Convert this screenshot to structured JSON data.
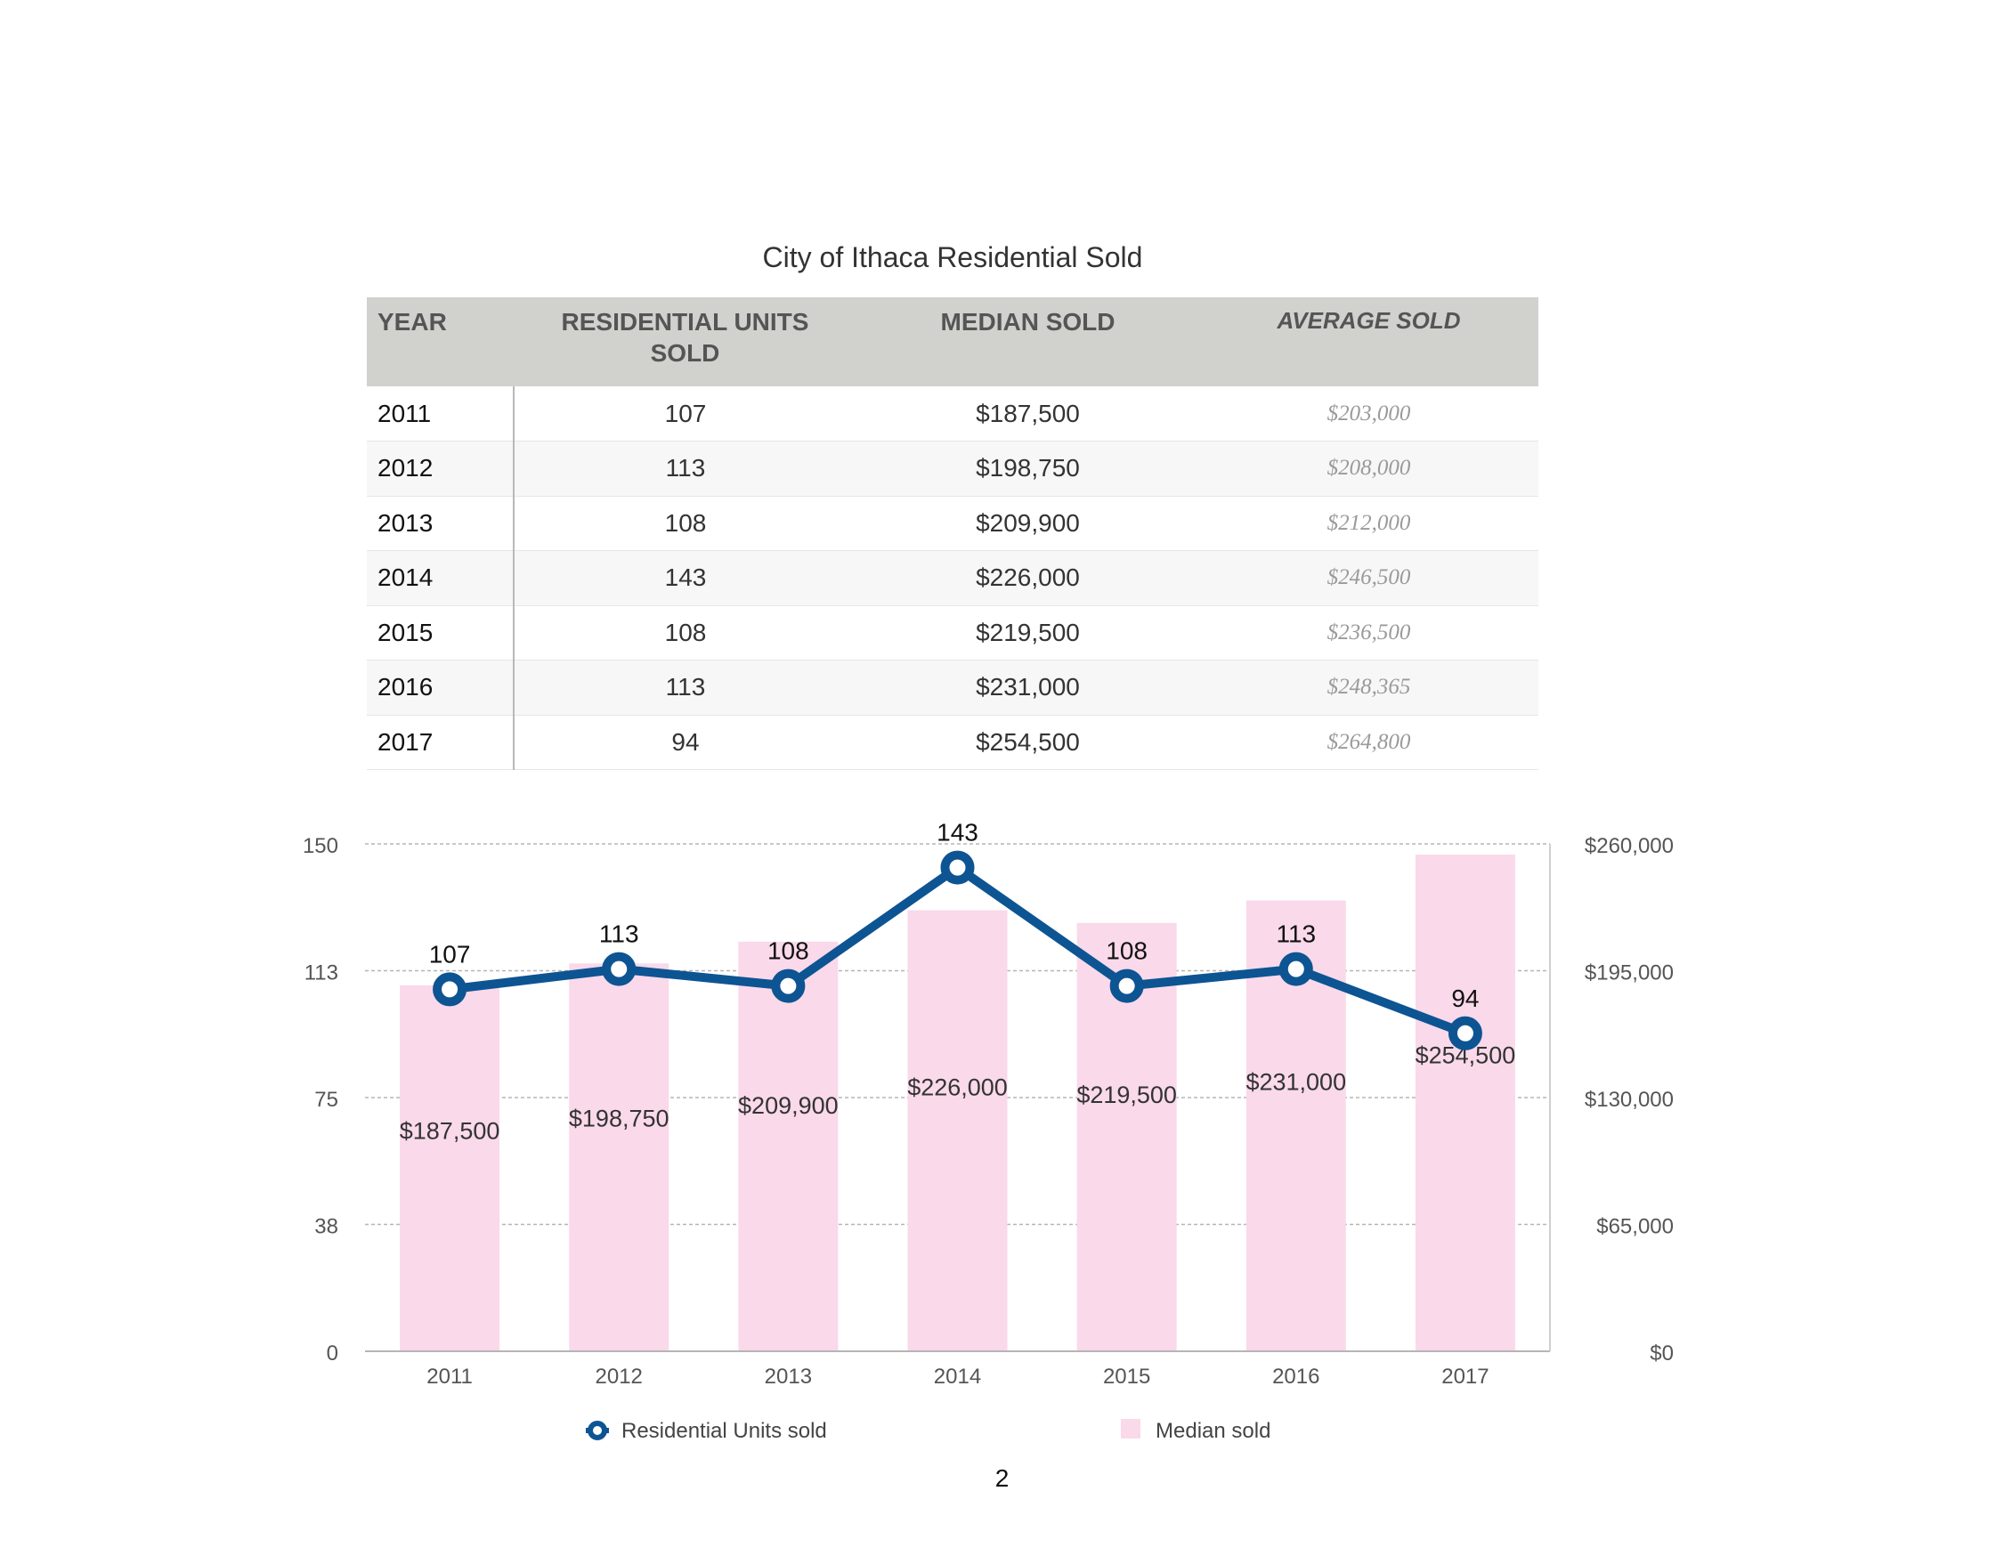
{
  "page": {
    "title": "City of Ithaca Residential Sold",
    "page_number": "2"
  },
  "table": {
    "headers": [
      "YEAR",
      "RESIDENTIAL UNITS SOLD",
      "MEDIAN SOLD",
      "AVERAGE SOLD"
    ],
    "rows": [
      [
        "2011",
        "107",
        "$187,500",
        "$203,000"
      ],
      [
        "2012",
        "113",
        "$198,750",
        "$208,000"
      ],
      [
        "2013",
        "108",
        "$209,900",
        "$212,000"
      ],
      [
        "2014",
        "143",
        "$226,000",
        "$246,500"
      ],
      [
        "2015",
        "108",
        "$219,500",
        "$236,500"
      ],
      [
        "2016",
        "113",
        "$231,000",
        "$248,365"
      ],
      [
        "2017",
        "94",
        "$254,500",
        "$264,800"
      ]
    ]
  },
  "chart_data": {
    "type": "bar",
    "categories": [
      "2011",
      "2012",
      "2013",
      "2014",
      "2015",
      "2016",
      "2017"
    ],
    "series": [
      {
        "name": "Median sold",
        "type": "bar",
        "axis": "right",
        "color": "#f9d9ea",
        "values": [
          187500,
          198750,
          209900,
          226000,
          219500,
          231000,
          254500
        ],
        "labels": [
          "$187,500",
          "$198,750",
          "$209,900",
          "$226,000",
          "$219,500",
          "$231,000",
          "$254,500"
        ]
      },
      {
        "name": "Residential Units sold",
        "type": "line",
        "axis": "left",
        "color": "#0d5493",
        "values": [
          107,
          113,
          108,
          143,
          108,
          113,
          94
        ],
        "labels": [
          "107",
          "113",
          "108",
          "143",
          "108",
          "113",
          "94"
        ]
      }
    ],
    "left_axis": {
      "ylim": [
        0,
        150
      ],
      "ticks": [
        "0",
        "38",
        "75",
        "113",
        "150"
      ]
    },
    "right_axis": {
      "ylim": [
        0,
        260000
      ],
      "ticks": [
        "$0",
        "$65,000",
        "$130,000",
        "$195,000",
        "$260,000"
      ]
    },
    "grid": true,
    "legend": "bottom",
    "legend_entries": [
      "Residential Units sold",
      "Median sold"
    ]
  }
}
